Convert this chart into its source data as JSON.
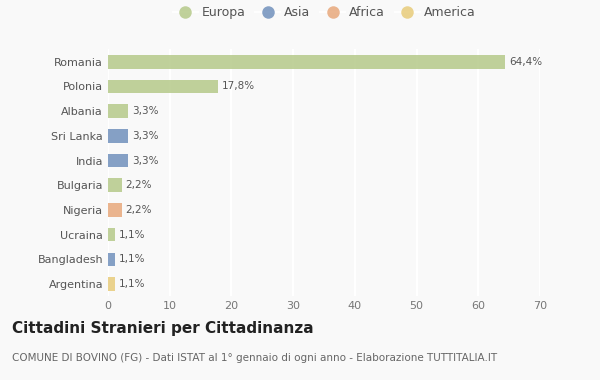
{
  "countries": [
    "Romania",
    "Polonia",
    "Albania",
    "Sri Lanka",
    "India",
    "Bulgaria",
    "Nigeria",
    "Ucraina",
    "Bangladesh",
    "Argentina"
  ],
  "values": [
    64.4,
    17.8,
    3.3,
    3.3,
    3.3,
    2.2,
    2.2,
    1.1,
    1.1,
    1.1
  ],
  "labels": [
    "64,4%",
    "17,8%",
    "3,3%",
    "3,3%",
    "3,3%",
    "2,2%",
    "2,2%",
    "1,1%",
    "1,1%",
    "1,1%"
  ],
  "continent": [
    "Europa",
    "Europa",
    "Europa",
    "Asia",
    "Asia",
    "Europa",
    "Africa",
    "Europa",
    "Asia",
    "America"
  ],
  "colors": {
    "Europa": "#b5c98a",
    "Asia": "#7191bc",
    "Africa": "#e8a87c",
    "America": "#e8cc7a"
  },
  "legend_order": [
    "Europa",
    "Asia",
    "Africa",
    "America"
  ],
  "xlim": [
    0,
    70
  ],
  "xticks": [
    0,
    10,
    20,
    30,
    40,
    50,
    60,
    70
  ],
  "title": "Cittadini Stranieri per Cittadinanza",
  "subtitle": "COMUNE DI BOVINO (FG) - Dati ISTAT al 1° gennaio di ogni anno - Elaborazione TUTTITALIA.IT",
  "background_color": "#f9f9f9",
  "grid_color": "#ffffff",
  "bar_height": 0.55,
  "title_fontsize": 11,
  "subtitle_fontsize": 7.5,
  "label_fontsize": 7.5,
  "tick_fontsize": 8,
  "legend_fontsize": 9
}
